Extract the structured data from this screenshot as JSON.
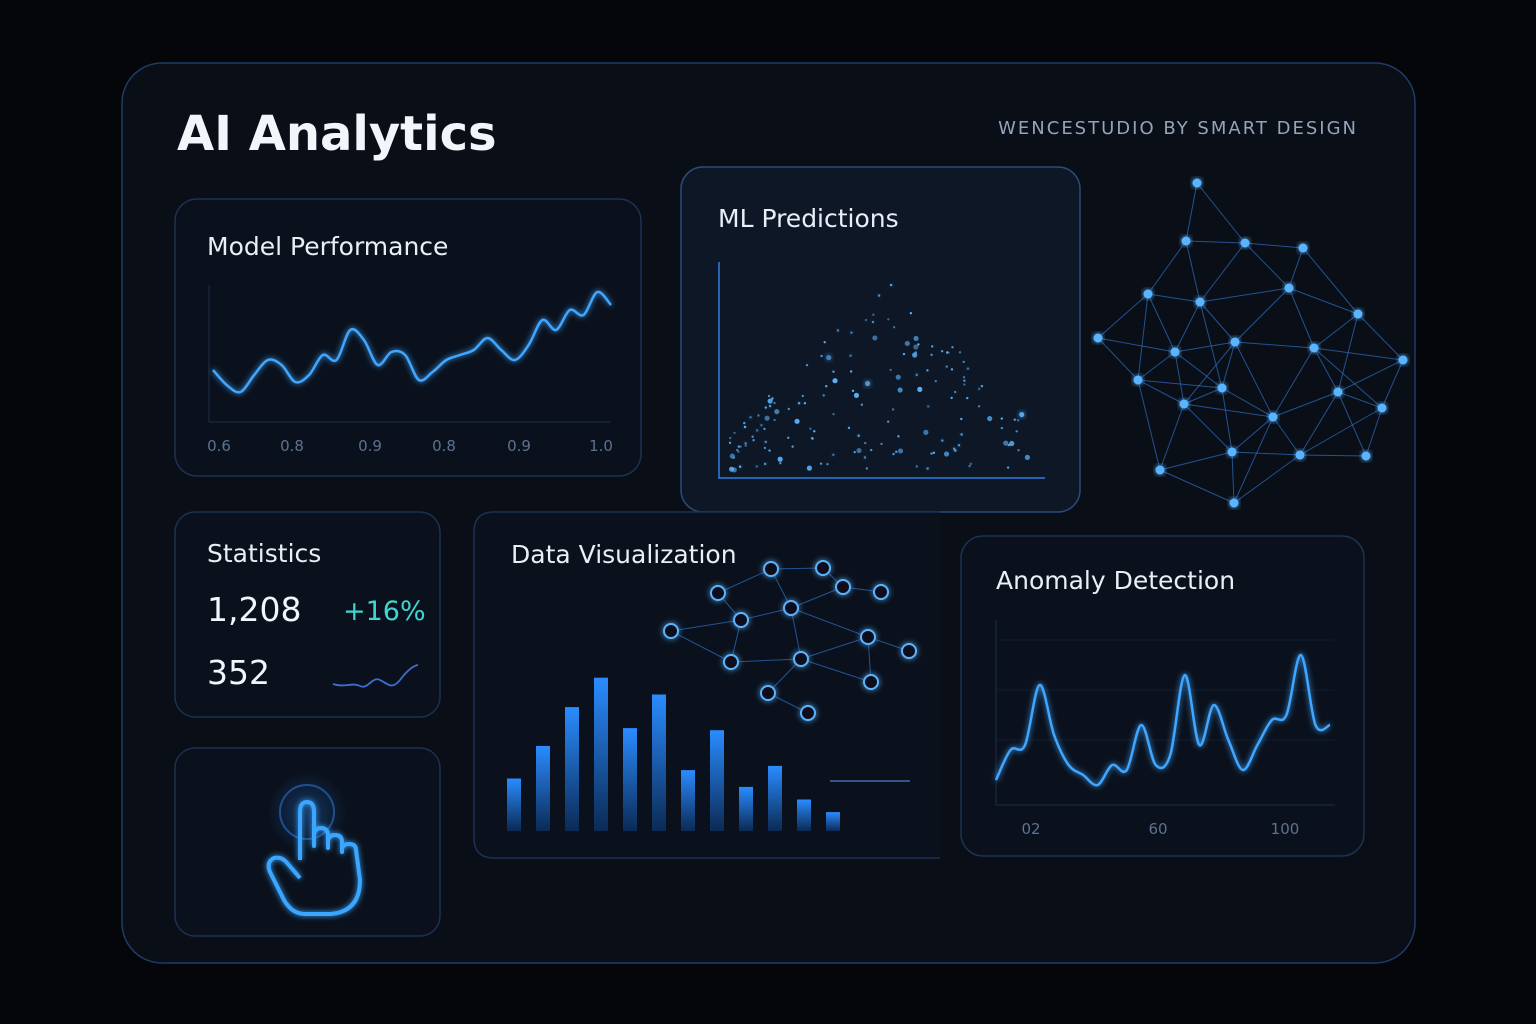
{
  "header": {
    "title": "AI Analytics",
    "brand": "WENCESTUDIO BY SMART DESIGN"
  },
  "model_performance": {
    "title": "Model Performance",
    "xticks": [
      "0.6",
      "0.8",
      "0.9",
      "0.8",
      "0.9",
      "1.0"
    ],
    "line": {
      "values": [
        30,
        15,
        8,
        25,
        40,
        35,
        18,
        25,
        45,
        40,
        70,
        60,
        35,
        48,
        45,
        20,
        28,
        40,
        45,
        50,
        62,
        50,
        40,
        55,
        80,
        70,
        90,
        85,
        108,
        95
      ],
      "ylim": [
        0,
        120
      ]
    }
  },
  "ml_predictions": {
    "title": "ML Predictions"
  },
  "statistics": {
    "title": "Statistics",
    "primary": "1,208",
    "change": "+16%",
    "secondary": "352"
  },
  "data_visualization": {
    "title": "Data Visualization",
    "bars": {
      "values": [
        50,
        81,
        118,
        146,
        98,
        130,
        58,
        96,
        42,
        62,
        30,
        18
      ],
      "ylim": [
        0,
        160
      ]
    }
  },
  "anomaly_detection": {
    "title": "Anomaly Detection",
    "xticks": [
      "02",
      "60",
      "100"
    ],
    "line": {
      "values": [
        25,
        55,
        60,
        120,
        70,
        40,
        30,
        20,
        40,
        35,
        80,
        40,
        50,
        130,
        60,
        100,
        65,
        35,
        60,
        85,
        90,
        150,
        80,
        80
      ],
      "ylim": [
        0,
        180
      ]
    }
  }
}
